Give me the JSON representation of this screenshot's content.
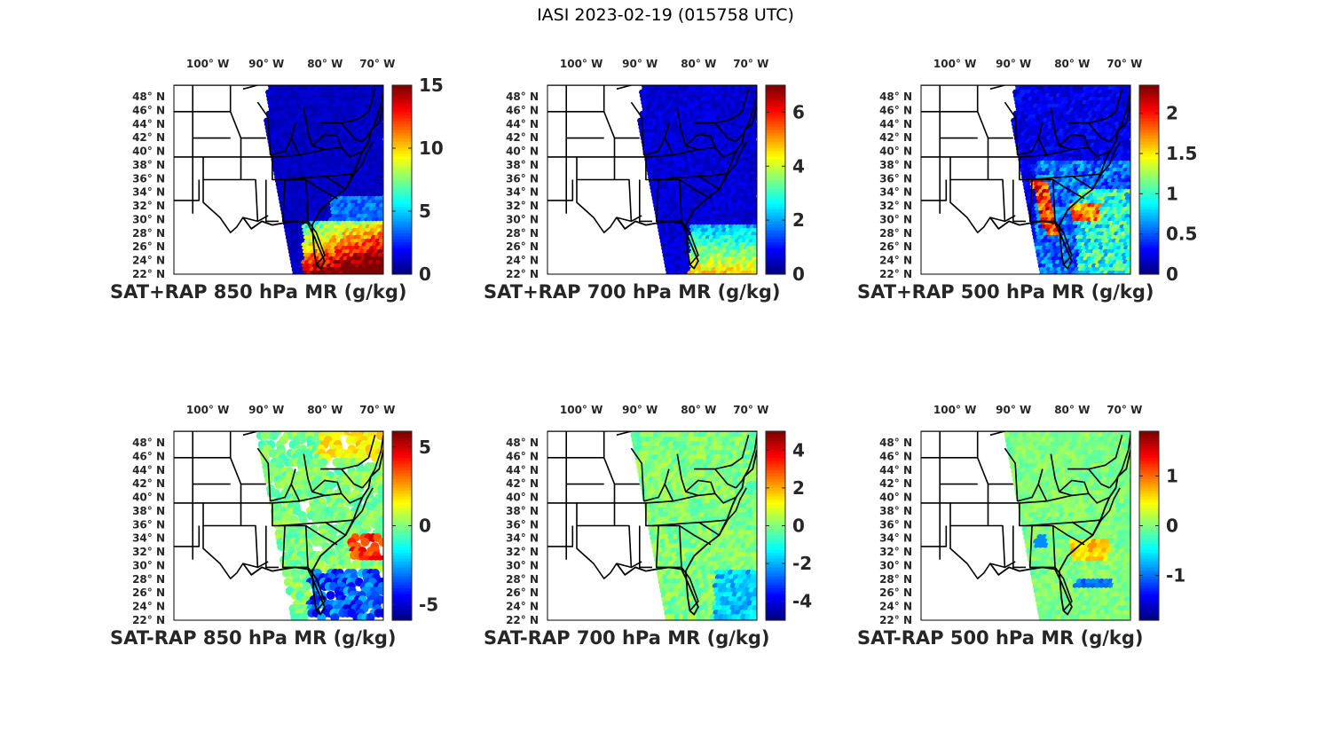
{
  "title": "IASI 2023-02-19 (015758 UTC)",
  "lon_ticks": [
    "100° W",
    "90° W",
    "80° W",
    "70° W"
  ],
  "lat_ticks": [
    "48° N",
    "46° N",
    "44° N",
    "42° N",
    "40° N",
    "38° N",
    "36° N",
    "34° N",
    "32° N",
    "30° N",
    "28° N",
    "26° N",
    "24° N",
    "22° N"
  ],
  "colormap": "jet",
  "panels": [
    {
      "caption": "SAT+RAP 850 hPa MR (g/kg)",
      "type": "total",
      "level": 850,
      "cmin": 0,
      "cmax": 15,
      "cticks": [
        "0",
        "5",
        "10",
        "15"
      ],
      "ctickvals": [
        0,
        5,
        10,
        15
      ]
    },
    {
      "caption": "SAT+RAP 700 hPa MR (g/kg)",
      "type": "total",
      "level": 700,
      "cmin": 0,
      "cmax": 7,
      "cticks": [
        "0",
        "2",
        "4",
        "6"
      ],
      "ctickvals": [
        0,
        2,
        4,
        6
      ]
    },
    {
      "caption": "SAT+RAP 500 hPa MR (g/kg)",
      "type": "total",
      "level": 500,
      "cmin": 0,
      "cmax": 2.35,
      "cticks": [
        "0",
        "0.5",
        "1",
        "1.5",
        "2"
      ],
      "ctickvals": [
        0,
        0.5,
        1,
        1.5,
        2
      ]
    },
    {
      "caption": "SAT-RAP 850 hPa MR (g/kg)",
      "type": "diff",
      "level": 850,
      "cmin": -6,
      "cmax": 6,
      "cticks": [
        "-5",
        "0",
        "5"
      ],
      "ctickvals": [
        -5,
        0,
        5
      ]
    },
    {
      "caption": "SAT-RAP 700 hPa MR (g/kg)",
      "type": "diff",
      "level": 700,
      "cmin": -5,
      "cmax": 5,
      "cticks": [
        "-4",
        "-2",
        "0",
        "2",
        "4"
      ],
      "ctickvals": [
        -4,
        -2,
        0,
        2,
        4
      ]
    },
    {
      "caption": "SAT-RAP 500 hPa MR (g/kg)",
      "type": "diff",
      "level": 500,
      "cmin": -1.9,
      "cmax": 1.9,
      "cticks": [
        "-1",
        "0",
        "1"
      ],
      "ctickvals": [
        -1,
        0,
        1
      ]
    }
  ]
}
